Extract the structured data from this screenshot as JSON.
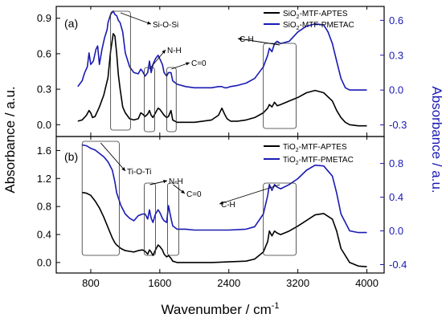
{
  "chart_data": [
    {
      "type": "line",
      "panel_label": "(a)",
      "xlabel": "Wavenumber / cm",
      "xlabel_sup": "-1",
      "ylabel_left": "Absorbance / a.u.",
      "ylabel_right": "Absorbance / a.u.",
      "xlim": [
        400,
        4200
      ],
      "ylim_left": [
        -0.1,
        1.0
      ],
      "ylim_right": [
        -0.4,
        0.72
      ],
      "x_ticks": [
        800,
        1600,
        2400,
        3200,
        4000
      ],
      "x_tick_labels": [
        "800",
        "1600",
        "2400",
        "3200",
        "4000"
      ],
      "y_left_ticks": [
        0.0,
        0.3,
        0.6,
        0.9
      ],
      "y_left_tick_labels": [
        "0.0",
        "0.3",
        "0.6",
        "0.9"
      ],
      "y_right_ticks": [
        -0.3,
        0.0,
        0.3,
        0.6
      ],
      "y_right_tick_labels": [
        "-0.3",
        "0.0",
        "0.3",
        "0.6"
      ],
      "series": [
        {
          "name_parts": [
            "SiO",
            "2",
            "-MTF-APTES"
          ],
          "color": "#000000",
          "axis": "left",
          "x": [
            650,
            700,
            750,
            780,
            800,
            820,
            850,
            900,
            950,
            1000,
            1030,
            1060,
            1080,
            1100,
            1120,
            1140,
            1170,
            1200,
            1250,
            1300,
            1350,
            1380,
            1400,
            1430,
            1460,
            1480,
            1500,
            1520,
            1550,
            1580,
            1600,
            1630,
            1650,
            1680,
            1700,
            1730,
            1750,
            1800,
            1900,
            2000,
            2100,
            2200,
            2280,
            2320,
            2350,
            2380,
            2420,
            2500,
            2600,
            2700,
            2800,
            2850,
            2870,
            2900,
            2930,
            2960,
            3000,
            3100,
            3200,
            3300,
            3400,
            3500,
            3600,
            3650,
            3700,
            3750,
            3800,
            3900,
            4000
          ],
          "y": [
            0.03,
            0.04,
            0.08,
            0.12,
            0.1,
            0.06,
            0.07,
            0.15,
            0.25,
            0.4,
            0.62,
            0.77,
            0.75,
            0.6,
            0.42,
            0.3,
            0.15,
            0.1,
            0.05,
            0.04,
            0.05,
            0.1,
            0.09,
            0.07,
            0.09,
            0.12,
            0.08,
            0.06,
            0.1,
            0.14,
            0.13,
            0.1,
            0.08,
            0.06,
            0.07,
            0.12,
            0.04,
            0.02,
            0.02,
            0.02,
            0.03,
            0.04,
            0.08,
            0.14,
            0.09,
            0.05,
            0.03,
            0.03,
            0.04,
            0.06,
            0.1,
            0.14,
            0.17,
            0.15,
            0.19,
            0.16,
            0.17,
            0.2,
            0.23,
            0.27,
            0.29,
            0.27,
            0.2,
            0.12,
            0.06,
            0.02,
            0.0,
            -0.01,
            -0.01
          ]
        },
        {
          "name_parts": [
            "SiO",
            "2",
            "-MTF-PMETAC"
          ],
          "color": "#1a1ab4",
          "axis": "right",
          "x": [
            650,
            700,
            730,
            760,
            780,
            800,
            830,
            860,
            880,
            900,
            930,
            960,
            990,
            1000,
            1030,
            1060,
            1080,
            1100,
            1120,
            1140,
            1170,
            1200,
            1250,
            1300,
            1350,
            1380,
            1400,
            1430,
            1460,
            1480,
            1500,
            1520,
            1550,
            1580,
            1600,
            1630,
            1650,
            1680,
            1700,
            1730,
            1750,
            1800,
            1900,
            2000,
            2100,
            2200,
            2280,
            2320,
            2350,
            2380,
            2420,
            2500,
            2600,
            2700,
            2800,
            2850,
            2870,
            2900,
            2930,
            2960,
            3000,
            3100,
            3200,
            3300,
            3400,
            3500,
            3550,
            3600,
            3650,
            3700,
            3750,
            3800,
            3900,
            4000
          ],
          "y": [
            0.03,
            0.08,
            0.15,
            0.2,
            0.32,
            0.22,
            0.25,
            0.35,
            0.38,
            0.22,
            0.35,
            0.45,
            0.52,
            0.58,
            0.65,
            0.68,
            0.65,
            0.64,
            0.6,
            0.58,
            0.5,
            0.32,
            0.2,
            0.15,
            0.14,
            0.18,
            0.16,
            0.12,
            0.15,
            0.25,
            0.15,
            0.22,
            0.27,
            0.3,
            0.27,
            0.22,
            0.15,
            0.12,
            0.15,
            0.15,
            0.08,
            0.05,
            0.03,
            0.02,
            0.02,
            0.02,
            0.03,
            0.03,
            0.02,
            0.02,
            0.03,
            0.04,
            0.06,
            0.1,
            0.2,
            0.3,
            0.36,
            0.33,
            0.4,
            0.42,
            0.4,
            0.42,
            0.5,
            0.55,
            0.57,
            0.56,
            0.5,
            0.4,
            0.25,
            0.1,
            0.02,
            0.0,
            0.0,
            0.0
          ]
        }
      ],
      "annotations": [
        {
          "text": "Si-O-Si",
          "box": [
            1030,
            1260
          ]
        },
        {
          "text": "N-H",
          "box": [
            1420,
            1540
          ]
        },
        {
          "text": "C=0",
          "box": [
            1680,
            1790
          ]
        },
        {
          "text": "C-H",
          "box": [
            2800,
            3180
          ]
        }
      ]
    },
    {
      "type": "line",
      "panel_label": "(b)",
      "xlim": [
        400,
        4200
      ],
      "ylim_left": [
        -0.15,
        1.8
      ],
      "ylim_right": [
        -0.5,
        1.12
      ],
      "x_ticks": [
        800,
        1600,
        2400,
        3200,
        4000
      ],
      "x_tick_labels": [
        "800",
        "1600",
        "2400",
        "3200",
        "4000"
      ],
      "y_left_ticks": [
        0.0,
        0.4,
        0.8,
        1.2,
        1.6
      ],
      "y_left_tick_labels": [
        "0.0",
        "0.4",
        "0.8",
        "1.2",
        "1.6"
      ],
      "y_right_ticks": [
        -0.4,
        0.0,
        0.4,
        0.8
      ],
      "y_right_tick_labels": [
        "-0.4",
        "0.0",
        "0.4",
        "0.8"
      ],
      "series": [
        {
          "name_parts": [
            "TiO",
            "2",
            "-MTF-APTES"
          ],
          "color": "#000000",
          "axis": "left",
          "x": [
            700,
            750,
            800,
            850,
            900,
            950,
            1000,
            1050,
            1080,
            1100,
            1150,
            1200,
            1250,
            1300,
            1350,
            1400,
            1430,
            1460,
            1480,
            1500,
            1520,
            1550,
            1580,
            1600,
            1630,
            1650,
            1680,
            1700,
            1730,
            1750,
            1800,
            1900,
            2000,
            2200,
            2400,
            2600,
            2700,
            2800,
            2850,
            2870,
            2900,
            2930,
            2960,
            3000,
            3100,
            3200,
            3300,
            3400,
            3500,
            3600,
            3650,
            3700,
            3800,
            3900,
            4000
          ],
          "y": [
            1.0,
            0.99,
            0.96,
            0.88,
            0.78,
            0.65,
            0.5,
            0.35,
            0.28,
            0.25,
            0.2,
            0.17,
            0.16,
            0.15,
            0.17,
            0.18,
            0.16,
            0.12,
            0.18,
            0.15,
            0.1,
            0.18,
            0.25,
            0.23,
            0.18,
            0.12,
            0.08,
            0.1,
            0.06,
            0.02,
            0.0,
            0.0,
            0.0,
            0.0,
            0.01,
            0.02,
            0.05,
            0.15,
            0.3,
            0.45,
            0.38,
            0.45,
            0.42,
            0.4,
            0.45,
            0.52,
            0.6,
            0.68,
            0.7,
            0.62,
            0.45,
            0.2,
            0.0,
            -0.05,
            -0.06
          ]
        },
        {
          "name_parts": [
            "TiO",
            "2",
            "-MTF-PMETAC"
          ],
          "color": "#1a1ab4",
          "axis": "right",
          "x": [
            700,
            750,
            800,
            850,
            900,
            950,
            1000,
            1050,
            1080,
            1100,
            1150,
            1200,
            1250,
            1300,
            1350,
            1400,
            1430,
            1460,
            1480,
            1500,
            1520,
            1550,
            1580,
            1600,
            1630,
            1650,
            1680,
            1700,
            1730,
            1750,
            1800,
            1900,
            2000,
            2200,
            2400,
            2600,
            2700,
            2800,
            2850,
            2870,
            2900,
            2930,
            2960,
            3000,
            3100,
            3200,
            3300,
            3400,
            3500,
            3600,
            3650,
            3700,
            3800,
            3900,
            4000
          ],
          "y": [
            1.02,
            1.01,
            0.98,
            0.96,
            0.92,
            0.88,
            0.82,
            0.72,
            0.58,
            0.45,
            0.3,
            0.2,
            0.15,
            0.12,
            0.18,
            0.2,
            0.2,
            0.14,
            0.25,
            0.15,
            0.1,
            0.2,
            0.25,
            0.22,
            0.15,
            0.12,
            0.1,
            0.3,
            0.15,
            0.06,
            0.02,
            0.02,
            0.01,
            0.01,
            0.01,
            0.02,
            0.05,
            0.2,
            0.42,
            0.55,
            0.48,
            0.55,
            0.52,
            0.5,
            0.55,
            0.62,
            0.72,
            0.78,
            0.77,
            0.65,
            0.45,
            0.2,
            0.0,
            -0.02,
            -0.02
          ]
        }
      ],
      "annotations": [
        {
          "text": "Ti-O-Ti",
          "box": [
            700,
            1130
          ]
        },
        {
          "text": "N-H",
          "box": [
            1420,
            1550
          ]
        },
        {
          "text": "C=0",
          "box": [
            1690,
            1820
          ]
        },
        {
          "text": "C-H",
          "box": [
            2800,
            3180
          ]
        }
      ]
    }
  ]
}
